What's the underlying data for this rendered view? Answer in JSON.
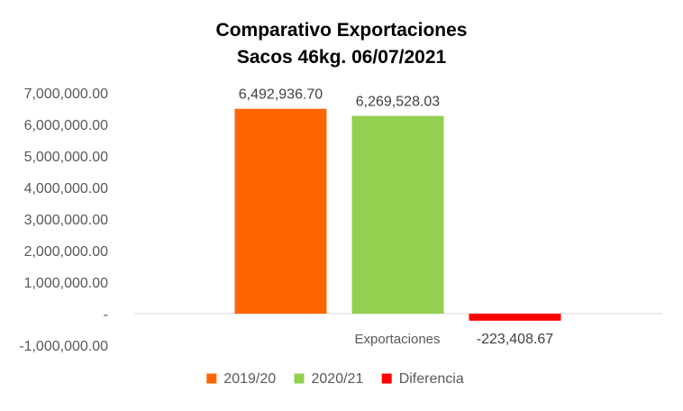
{
  "chart_data": {
    "type": "bar",
    "title": [
      "Comparativo  Exportaciones",
      "Sacos 46kg. 06/07/2021"
    ],
    "categories": [
      "Exportaciones"
    ],
    "series": [
      {
        "name": "2019/20",
        "values": [
          6492936.7
        ],
        "label": "6,492,936.70",
        "color": "#ff6600"
      },
      {
        "name": "2020/21",
        "values": [
          6269528.03
        ],
        "label": "6,269,528.03",
        "color": "#92d050"
      },
      {
        "name": "Diferencia",
        "values": [
          -223408.67
        ],
        "label": "-223,408.67",
        "color": "#ff0000"
      }
    ],
    "ylim": [
      -1000000,
      7000000
    ],
    "yticks": [
      {
        "value": 7000000,
        "label": "7,000,000.00"
      },
      {
        "value": 6000000,
        "label": "6,000,000.00"
      },
      {
        "value": 5000000,
        "label": "5,000,000.00"
      },
      {
        "value": 4000000,
        "label": "4,000,000.00"
      },
      {
        "value": 3000000,
        "label": "3,000,000.00"
      },
      {
        "value": 2000000,
        "label": "2,000,000.00"
      },
      {
        "value": 1000000,
        "label": "1,000,000.00"
      },
      {
        "value": 0,
        "label": "-"
      },
      {
        "value": -1000000,
        "label": "-1,000,000.00"
      }
    ],
    "grid": false,
    "legend": "bottom"
  }
}
